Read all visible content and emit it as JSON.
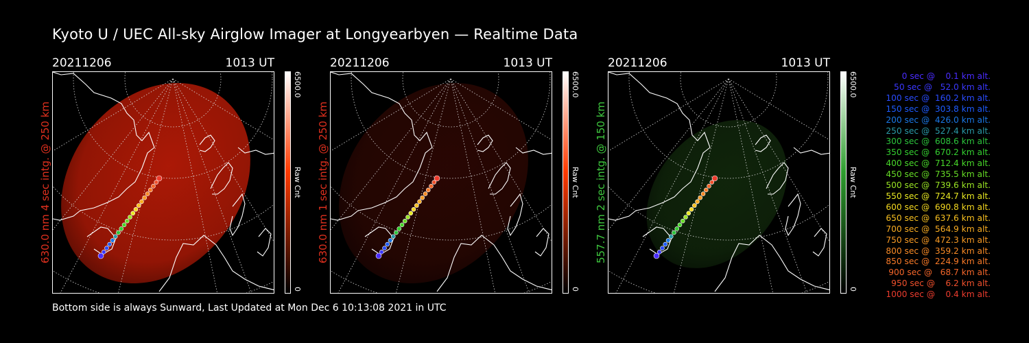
{
  "title": "Kyoto U / UEC All-sky Airglow Imager at Longyearbyen — Realtime Data",
  "footer": "Bottom side is always Sunward, Last Updated at Mon Dec  6 10:13:08 2021 in UTC",
  "panels": [
    {
      "date": "20211206",
      "time": "1013 UT",
      "side_label": "630.0 nm 4 sec intg. @ 250 km",
      "cbar_max": "6500.0",
      "cbar_min": "0",
      "cbar_unit": "Raw Cnt",
      "label_color": "#e0301e",
      "cbar_color": "#ff3a00",
      "glow_color": "#b41a06",
      "glow_intensity": 0.95
    },
    {
      "date": "20211206",
      "time": "1013 UT",
      "side_label": "630.0 nm 1 sec intg. @ 250 km",
      "cbar_max": "6500.0",
      "cbar_min": "0",
      "cbar_unit": "Raw Cnt",
      "label_color": "#e0301e",
      "cbar_color": "#ff3a00",
      "glow_color": "#4a0c05",
      "glow_intensity": 0.55
    },
    {
      "date": "20211206",
      "time": "1013 UT",
      "side_label": "557.7 nm 2 sec intg. @ 150 km",
      "cbar_max": "6500.0",
      "cbar_min": "0",
      "cbar_unit": "Raw Cnt",
      "label_color": "#3ec83e",
      "cbar_color": "#2e9e2e",
      "glow_color": "#1a3d12",
      "glow_intensity": 0.6
    }
  ],
  "legend": [
    {
      "text": "   0 sec @    0.1 km alt.",
      "color": "#4a2cff"
    },
    {
      "text": "  50 sec @   52.0 km alt.",
      "color": "#3b38ff"
    },
    {
      "text": " 100 sec @  160.2 km alt.",
      "color": "#2a4cff"
    },
    {
      "text": " 150 sec @  303.8 km alt.",
      "color": "#1e5cff"
    },
    {
      "text": " 200 sec @  426.0 km alt.",
      "color": "#1a78e6"
    },
    {
      "text": " 250 sec @  527.4 km alt.",
      "color": "#2a9aa8"
    },
    {
      "text": " 300 sec @  608.6 km alt.",
      "color": "#2cc43c"
    },
    {
      "text": " 350 sec @  670.2 km alt.",
      "color": "#34d030"
    },
    {
      "text": " 400 sec @  712.4 km alt.",
      "color": "#48d82a"
    },
    {
      "text": " 450 sec @  735.5 km alt.",
      "color": "#66dc26"
    },
    {
      "text": " 500 sec @  739.6 km alt.",
      "color": "#9ae424"
    },
    {
      "text": " 550 sec @  724.7 km alt.",
      "color": "#e8e822"
    },
    {
      "text": " 600 sec @  690.8 km alt.",
      "color": "#f4d820"
    },
    {
      "text": " 650 sec @  637.6 km alt.",
      "color": "#f8c020"
    },
    {
      "text": " 700 sec @  564.9 km alt.",
      "color": "#f8ac22"
    },
    {
      "text": " 750 sec @  472.3 km alt.",
      "color": "#f89a24"
    },
    {
      "text": " 800 sec @  359.2 km alt.",
      "color": "#f88a26"
    },
    {
      "text": " 850 sec @  224.9 km alt.",
      "color": "#f87a28"
    },
    {
      "text": " 900 sec @   68.7 km alt.",
      "color": "#f4662a"
    },
    {
      "text": " 950 sec @    6.2 km alt.",
      "color": "#f0502c"
    },
    {
      "text": "1000 sec @    0.4 km alt.",
      "color": "#ec3c2e"
    }
  ]
}
